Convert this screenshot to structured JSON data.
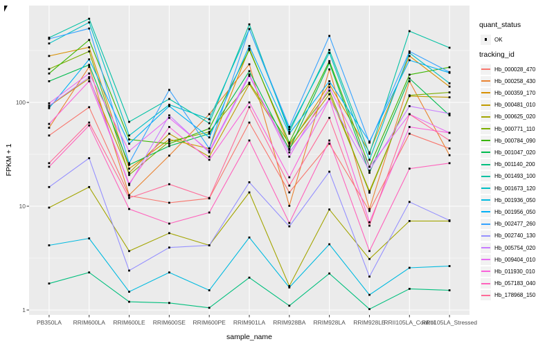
{
  "figure": {
    "y_axis": {
      "title": "FPKM + 1"
    },
    "x_axis": {
      "title": "sample_name"
    },
    "legend": {
      "quant_status_title": "quant_status",
      "quant_status_ok_label": "OK",
      "tracking_title": "tracking_id"
    }
  },
  "colors": {
    "panel_bg": "#EBEBEB",
    "grid": "#FFFFFF",
    "tick_text": "#4D4D4D",
    "axis_title_text": "#000000",
    "point": "#000000",
    "legend_key_bg": "#F2F2F2"
  },
  "chart_data": {
    "type": "line",
    "title": "",
    "xlabel": "sample_name",
    "ylabel": "FPKM + 1",
    "y_scale": "log10",
    "ylim": [
      0.95,
      860
    ],
    "y_ticks": [
      1,
      10,
      100
    ],
    "y_minor_ticks": [
      3.162,
      31.62,
      316.2
    ],
    "grid": true,
    "legend_position": "right",
    "point_shape": "filled-square",
    "quant_status": "OK",
    "categories": [
      "PB350LA",
      "RRIM600LA",
      "RRIM600LE",
      "RRIM600SE",
      "RRIM600PE",
      "RRIM901LA",
      "RRIM928BA",
      "RRIM928LA",
      "RRIM928LE",
      "RRII105LA_Control",
      "RRII105LA_Stressed"
    ],
    "series": [
      {
        "name": "Hb_000028_470",
        "color": "#F8766D",
        "values": [
          48,
          90,
          12.6,
          10.8,
          11.9,
          64,
          13.6,
          40,
          9.0,
          50,
          36
        ]
      },
      {
        "name": "Hb_000258_430",
        "color": "#EA8331",
        "values": [
          57,
          220,
          12.8,
          30.7,
          77,
          233,
          10.1,
          208,
          9.4,
          160,
          31
        ]
      },
      {
        "name": "Hb_000359_170",
        "color": "#D89000",
        "values": [
          280,
          340,
          23,
          44,
          36,
          330,
          38,
          150,
          33,
          280,
          142
        ]
      },
      {
        "name": "Hb_000481_010",
        "color": "#C09B00",
        "values": [
          92,
          170,
          21,
          50,
          30,
          150,
          36,
          120,
          14,
          115,
          112
        ]
      },
      {
        "name": "Hb_000625_020",
        "color": "#A3A500",
        "values": [
          9.7,
          15.3,
          3.7,
          5.5,
          4.2,
          13.6,
          1.7,
          9.3,
          3.1,
          7.2,
          7.2
        ]
      },
      {
        "name": "Hb_000771_110",
        "color": "#7CAE00",
        "values": [
          210,
          310,
          20,
          42,
          52,
          155,
          40,
          130,
          13.5,
          117,
          125
        ]
      },
      {
        "name": "Hb_000784_090",
        "color": "#39B600",
        "values": [
          190,
          400,
          44,
          40,
          56,
          320,
          41,
          250,
          24,
          185,
          218
        ]
      },
      {
        "name": "Hb_001047_020",
        "color": "#00BB4E",
        "values": [
          160,
          230,
          25,
          38,
          50,
          200,
          35,
          240,
          21,
          170,
          75
        ]
      },
      {
        "name": "Hb_001140_200",
        "color": "#00BF7D",
        "values": [
          1.8,
          2.3,
          1.2,
          1.17,
          1.05,
          2.05,
          1.1,
          2.25,
          1.02,
          1.6,
          1.55
        ]
      },
      {
        "name": "Hb_001493_100",
        "color": "#00C1A3",
        "values": [
          420,
          640,
          65,
          108,
          63,
          565,
          52,
          320,
          32,
          486,
          336
        ]
      },
      {
        "name": "Hb_001673_120",
        "color": "#00BFC4",
        "values": [
          370,
          590,
          48,
          95,
          69,
          510,
          55,
          300,
          28,
          300,
          153
        ]
      },
      {
        "name": "Hb_001936_050",
        "color": "#00BAE0",
        "values": [
          4.2,
          4.9,
          1.5,
          2.3,
          1.55,
          5.0,
          1.65,
          4.3,
          1.4,
          2.55,
          2.65
        ]
      },
      {
        "name": "Hb_001956_050",
        "color": "#00B0F6",
        "values": [
          88,
          260,
          40,
          92,
          46,
          350,
          50,
          160,
          42,
          255,
          193
        ]
      },
      {
        "name": "Hb_002477_260",
        "color": "#35A2FF",
        "values": [
          410,
          515,
          26,
          132,
          36,
          510,
          58,
          437,
          41,
          310,
          196
        ]
      },
      {
        "name": "Hb_002740_130",
        "color": "#9590FF",
        "values": [
          15.3,
          29,
          2.4,
          4.0,
          4.2,
          17,
          6.4,
          21.5,
          2.1,
          11,
          7.3
        ]
      },
      {
        "name": "Hb_005754_020",
        "color": "#C77CFF",
        "values": [
          93,
          175,
          16,
          75,
          33,
          180,
          33,
          108,
          22,
          92,
          78
        ]
      },
      {
        "name": "Hb_009404_010",
        "color": "#E76BF3",
        "values": [
          98,
          190,
          34,
          71,
          34,
          186,
          30,
          140,
          24,
          77,
          51
        ]
      },
      {
        "name": "Hb_011930_010",
        "color": "#FA62DB",
        "values": [
          62,
          160,
          16.5,
          58,
          28,
          100,
          19,
          108,
          7.0,
          58,
          51
        ]
      },
      {
        "name": "Hb_057183_040",
        "color": "#FF62BC",
        "values": [
          24,
          60,
          9.4,
          6.8,
          8.7,
          43,
          6.9,
          43,
          3.7,
          23,
          26
        ]
      },
      {
        "name": "Hb_178968_150",
        "color": "#FF6A98",
        "values": [
          26,
          64,
          12,
          16.3,
          12,
          90,
          15.8,
          71,
          6.5,
          77,
          43
        ]
      }
    ]
  }
}
